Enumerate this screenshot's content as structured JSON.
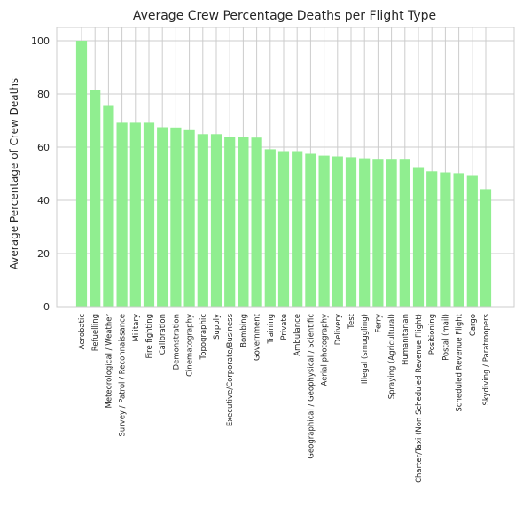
{
  "chart_data": {
    "type": "bar",
    "title": "Average Crew Percentage Deaths per Flight Type",
    "xlabel": "",
    "ylabel": "Average Percentage of Crew Deaths",
    "ylim": [
      0,
      105
    ],
    "yticks": [
      0,
      20,
      40,
      60,
      80,
      100
    ],
    "grid": true,
    "bar_color": "#90ee90",
    "categories": [
      "Aerobatic",
      "Refuelling",
      "Meteorological / Weather",
      "Survey / Patrol / Reconnaissance",
      "Military",
      "Fire fighting",
      "Calibration",
      "Demonstration",
      "Cinematography",
      "Topographic",
      "Supply",
      "Executive/Corporate/Business",
      "Bombing",
      "Government",
      "Training",
      "Private",
      "Ambulance",
      "Geographical / Geophysical / Scientific",
      "Aerial photography",
      "Delivery",
      "Test",
      "Illegal (smuggling)",
      "Ferry",
      "Spraying (Agricultural)",
      "Humanitarian",
      "Charter/Taxi (Non Scheduled Revenue Flight)",
      "Positioning",
      "Postal (mail)",
      "Scheduled Revenue Flight",
      "Cargo",
      "Skydiving / Paratroopers"
    ],
    "values": [
      100,
      81.5,
      75.5,
      69.2,
      69.2,
      69.2,
      67.5,
      67.4,
      66.4,
      64.9,
      64.9,
      63.9,
      63.9,
      63.6,
      59.2,
      58.5,
      58.5,
      57.5,
      56.8,
      56.5,
      56.2,
      55.8,
      55.6,
      55.6,
      55.6,
      52.5,
      50.9,
      50.5,
      50.2,
      49.5,
      44.2
    ]
  }
}
